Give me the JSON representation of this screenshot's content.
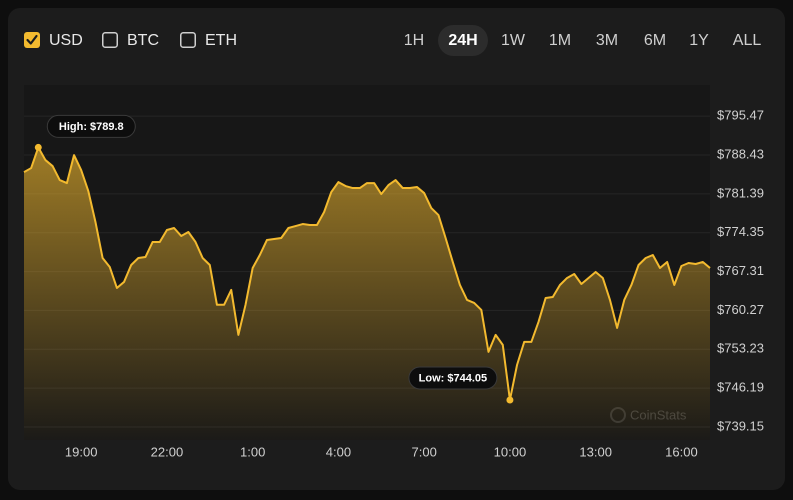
{
  "currencies": [
    {
      "label": "USD",
      "checked": true
    },
    {
      "label": "BTC",
      "checked": false
    },
    {
      "label": "ETH",
      "checked": false
    }
  ],
  "ranges": [
    {
      "label": "1H",
      "active": false
    },
    {
      "label": "24H",
      "active": true
    },
    {
      "label": "1W",
      "active": false
    },
    {
      "label": "1M",
      "active": false
    },
    {
      "label": "3M",
      "active": false
    },
    {
      "label": "6M",
      "active": false
    },
    {
      "label": "1Y",
      "active": false
    },
    {
      "label": "ALL",
      "active": false
    }
  ],
  "chart_data": {
    "type": "area",
    "color": "#f3ba2f",
    "grid": true,
    "watermark": "CoinStats",
    "x": [
      17,
      17.25,
      17.5,
      17.75,
      18,
      18.25,
      18.5,
      18.75,
      19,
      19.25,
      19.5,
      19.75,
      20,
      20.25,
      20.5,
      20.75,
      21,
      21.25,
      21.5,
      21.75,
      22,
      22.25,
      22.5,
      22.75,
      23,
      23.25,
      23.5,
      23.75,
      24,
      24.25,
      24.5,
      24.75,
      25,
      25.25,
      25.5,
      25.75,
      26,
      26.25,
      26.5,
      26.75,
      27,
      27.25,
      27.5,
      27.75,
      28,
      28.25,
      28.5,
      28.75,
      29,
      29.25,
      29.5,
      29.75,
      30,
      30.25,
      30.5,
      30.75,
      31,
      31.25,
      31.5,
      31.75,
      32,
      32.25,
      32.5,
      32.75,
      33,
      33.25,
      33.5,
      33.75,
      34,
      34.25,
      34.5,
      34.75,
      35,
      35.25,
      35.5,
      35.75,
      36,
      36.25,
      36.5,
      36.75,
      37,
      37.25,
      37.5,
      37.75,
      38,
      38.25,
      38.5,
      38.75,
      39,
      39.25,
      39.5,
      39.75,
      40,
      40.25,
      40.5,
      40.75,
      41
    ],
    "values": [
      785.33,
      786.06,
      789.8,
      787.51,
      786.42,
      783.89,
      783.34,
      788.41,
      785.7,
      781.9,
      776.29,
      769.77,
      768.14,
      764.34,
      765.43,
      768.5,
      769.77,
      769.95,
      772.67,
      772.67,
      774.84,
      775.2,
      773.75,
      774.48,
      772.67,
      769.77,
      768.5,
      761.29,
      761.29,
      763.98,
      755.84,
      761.29,
      767.96,
      770.31,
      773.03,
      773.21,
      773.39,
      775.2,
      775.56,
      775.92,
      775.74,
      775.74,
      778.1,
      781.71,
      783.52,
      782.8,
      782.44,
      782.44,
      783.34,
      783.34,
      781.35,
      782.98,
      783.89,
      782.44,
      782.44,
      782.62,
      781.53,
      778.82,
      777.55,
      773.39,
      769.05,
      764.88,
      762.17,
      761.63,
      760.36,
      752.76,
      755.84,
      754.03,
      744.05,
      750.41,
      754.57,
      754.57,
      758.19,
      762.53,
      762.71,
      764.88,
      766.15,
      766.87,
      765.06,
      766.15,
      767.24,
      766.15,
      762.17,
      757.1,
      762.17,
      764.88,
      768.5,
      769.77,
      770.31,
      767.96,
      769.05,
      764.88,
      768.32,
      768.86,
      768.68,
      769.05,
      767.96
    ],
    "xlim": [
      17,
      41
    ],
    "xticks": [
      {
        "value": 19,
        "label": "19:00"
      },
      {
        "value": 22,
        "label": "22:00"
      },
      {
        "value": 25,
        "label": "1:00"
      },
      {
        "value": 28,
        "label": "4:00"
      },
      {
        "value": 31,
        "label": "7:00"
      },
      {
        "value": 34,
        "label": "10:00"
      },
      {
        "value": 37,
        "label": "13:00"
      },
      {
        "value": 40,
        "label": "16:00"
      }
    ],
    "ylim": [
      736.8,
      800.2
    ],
    "yticks": [
      {
        "value": 739.15,
        "label": "$739.15"
      },
      {
        "value": 746.19,
        "label": "$746.19"
      },
      {
        "value": 753.23,
        "label": "$753.23"
      },
      {
        "value": 760.27,
        "label": "$760.27"
      },
      {
        "value": 767.31,
        "label": "$767.31"
      },
      {
        "value": 774.35,
        "label": "$774.35"
      },
      {
        "value": 781.39,
        "label": "$781.39"
      },
      {
        "value": 788.43,
        "label": "$788.43"
      },
      {
        "value": 795.47,
        "label": "$795.47"
      }
    ],
    "annotations": [
      {
        "text": "High: $789.8",
        "x": 17.5,
        "y": 789.8
      },
      {
        "text": "Low: $744.05",
        "x": 34,
        "y": 744.05
      }
    ]
  }
}
